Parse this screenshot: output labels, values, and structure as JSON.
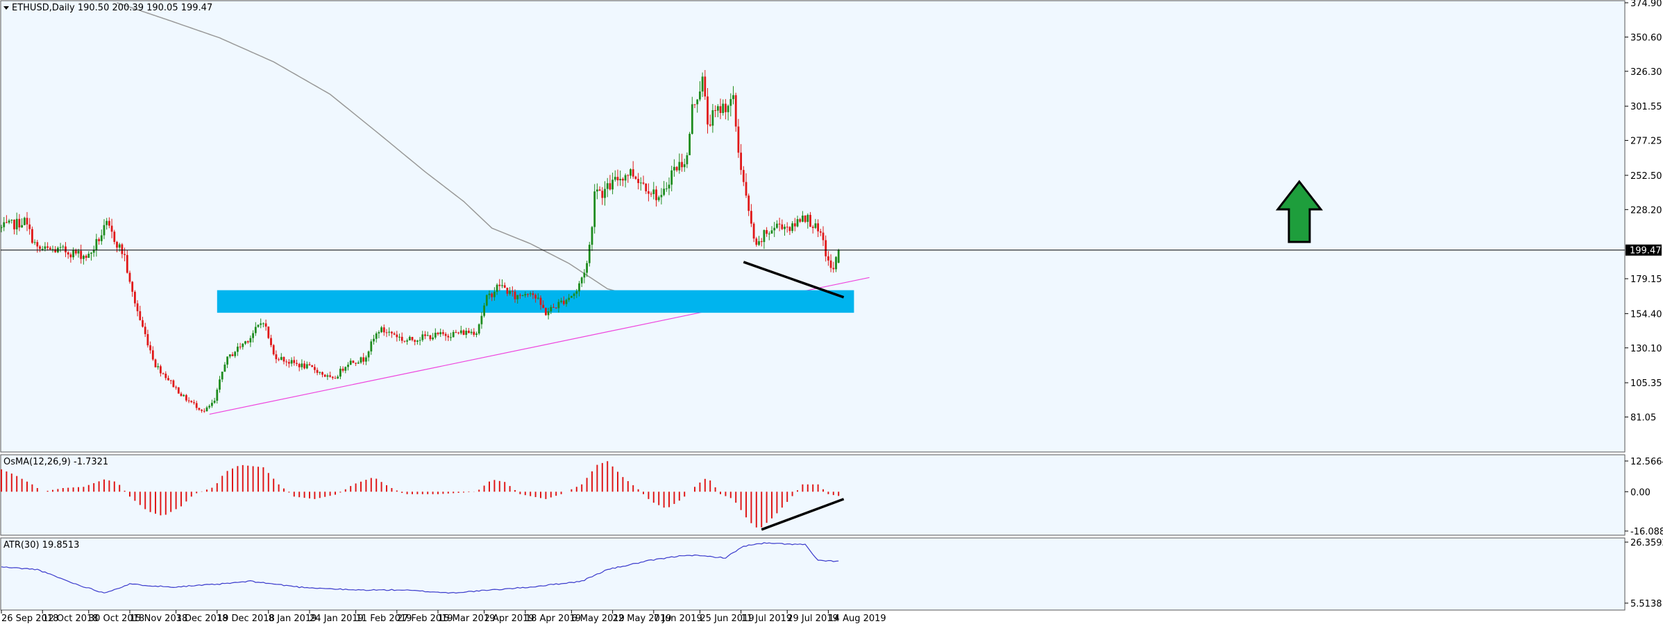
{
  "header": {
    "title": "ETHUSD,Daily  190.50 200.39 190.05 199.47"
  },
  "colors": {
    "background": "#f0f8ff",
    "bull": "#1e8c1e",
    "bear": "#e01818",
    "moving_average": "#999999",
    "trendline": "#ee44dd",
    "support_zone": "#00b4ee",
    "arrow": "#1e9e3c",
    "atr_line": "#3a3acc",
    "divergence_line": "#000000"
  },
  "chart_data": [
    {
      "type": "candlestick",
      "symbol": "ETHUSD",
      "timeframe": "Daily",
      "ohlc_last": {
        "open": 190.5,
        "high": 200.39,
        "low": 190.05,
        "close": 199.47
      },
      "ylim": [
        70.0,
        374.9
      ],
      "y_ticks": [
        "374.90",
        "350.60",
        "326.30",
        "301.55",
        "277.25",
        "252.50",
        "228.20",
        "199.47",
        "179.15",
        "154.40",
        "130.10",
        "105.35",
        "81.05"
      ],
      "current_price_label": "199.47",
      "x_ticks": [
        "26 Sep 2018",
        "12 Oct 2018",
        "30 Oct 2018",
        "15 Nov 2018",
        "3 Dec 2018",
        "19 Dec 2018",
        "8 Jan 2019",
        "24 Jan 2019",
        "11 Feb 2019",
        "27 Feb 2019",
        "15 Mar 2019",
        "2 Apr 2019",
        "18 Apr 2019",
        "6 May 2019",
        "22 May 2019",
        "7 Jun 2019",
        "25 Jun 2019",
        "11 Jul 2019",
        "29 Jul 2019",
        "14 Aug 2019"
      ],
      "x_tick_dates": [
        "2018-09-26",
        "2018-10-12",
        "2018-10-30",
        "2018-11-15",
        "2018-12-03",
        "2018-12-19",
        "2019-01-08",
        "2019-01-24",
        "2019-02-11",
        "2019-02-27",
        "2019-03-15",
        "2019-04-02",
        "2019-04-18",
        "2019-05-06",
        "2019-05-22",
        "2019-06-07",
        "2019-06-25",
        "2019-07-11",
        "2019-07-29",
        "2019-08-14"
      ],
      "close_anchors": [
        [
          "2018-09-26",
          215
        ],
        [
          "2018-10-05",
          220
        ],
        [
          "2018-10-10",
          200
        ],
        [
          "2018-10-20",
          199
        ],
        [
          "2018-10-30",
          195
        ],
        [
          "2018-11-06",
          217
        ],
        [
          "2018-11-13",
          195
        ],
        [
          "2018-11-15",
          175
        ],
        [
          "2018-11-19",
          150
        ],
        [
          "2018-11-25",
          118
        ],
        [
          "2018-11-29",
          110
        ],
        [
          "2018-12-06",
          95
        ],
        [
          "2018-12-14",
          85
        ],
        [
          "2018-12-18",
          92
        ],
        [
          "2018-12-22",
          120
        ],
        [
          "2018-12-26",
          128
        ],
        [
          "2019-01-01",
          138
        ],
        [
          "2019-01-06",
          150
        ],
        [
          "2019-01-10",
          125
        ],
        [
          "2019-01-16",
          120
        ],
        [
          "2019-01-26",
          115
        ],
        [
          "2019-02-02",
          107
        ],
        [
          "2019-02-08",
          120
        ],
        [
          "2019-02-14",
          122
        ],
        [
          "2019-02-20",
          143
        ],
        [
          "2019-02-26",
          140
        ],
        [
          "2019-03-02",
          135
        ],
        [
          "2019-03-10",
          138
        ],
        [
          "2019-03-20",
          140
        ],
        [
          "2019-03-30",
          142
        ],
        [
          "2019-04-03",
          165
        ],
        [
          "2019-04-08",
          175
        ],
        [
          "2019-04-14",
          166
        ],
        [
          "2019-04-20",
          171
        ],
        [
          "2019-04-26",
          155
        ],
        [
          "2019-04-30",
          160
        ],
        [
          "2019-05-08",
          170
        ],
        [
          "2019-05-12",
          190
        ],
        [
          "2019-05-14",
          215
        ],
        [
          "2019-05-15",
          245
        ],
        [
          "2019-05-18",
          240
        ],
        [
          "2019-05-24",
          250
        ],
        [
          "2019-05-29",
          255
        ],
        [
          "2019-06-04",
          245
        ],
        [
          "2019-06-10",
          235
        ],
        [
          "2019-06-14",
          255
        ],
        [
          "2019-06-20",
          265
        ],
        [
          "2019-06-22",
          300
        ],
        [
          "2019-06-26",
          320
        ],
        [
          "2019-06-28",
          290
        ],
        [
          "2019-07-03",
          300
        ],
        [
          "2019-07-08",
          305
        ],
        [
          "2019-07-10",
          270
        ],
        [
          "2019-07-14",
          225
        ],
        [
          "2019-07-17",
          200
        ],
        [
          "2019-07-20",
          210
        ],
        [
          "2019-07-26",
          218
        ],
        [
          "2019-07-31",
          215
        ],
        [
          "2019-08-04",
          225
        ],
        [
          "2019-08-08",
          218
        ],
        [
          "2019-08-12",
          205
        ],
        [
          "2019-08-14",
          190
        ],
        [
          "2019-08-16",
          185
        ],
        [
          "2019-08-18",
          199.47
        ]
      ],
      "ma_anchors": [
        [
          "2018-11-10",
          374.9
        ],
        [
          "2018-12-01",
          362
        ],
        [
          "2018-12-20",
          350
        ],
        [
          "2019-01-10",
          333
        ],
        [
          "2019-02-01",
          310
        ],
        [
          "2019-02-20",
          282
        ],
        [
          "2019-03-10",
          255
        ],
        [
          "2019-03-25",
          234
        ],
        [
          "2019-04-05",
          215
        ],
        [
          "2019-04-20",
          204
        ],
        [
          "2019-05-05",
          190
        ],
        [
          "2019-05-20",
          172
        ],
        [
          "2019-06-05",
          164
        ],
        [
          "2019-06-20",
          163
        ],
        [
          "2019-07-05",
          166
        ],
        [
          "2019-07-20",
          168
        ],
        [
          "2019-08-05",
          169
        ],
        [
          "2019-08-18",
          170
        ]
      ],
      "trendline": [
        [
          "2018-12-16",
          83
        ],
        [
          "2019-08-30",
          180
        ]
      ],
      "support_zone": {
        "from": "2018-12-19",
        "to": "2019-08-24",
        "low": 155,
        "high": 171
      },
      "price_divergence_line": [
        [
          "2019-07-12",
          191
        ],
        [
          "2019-08-20",
          166
        ]
      ],
      "signal_arrow": "up"
    },
    {
      "type": "bar",
      "indicator": "OsMA",
      "label": "OsMA(12,26,9) -1.7321",
      "ylim": [
        -16.0889,
        12.5664
      ],
      "y_ticks": [
        "12.5664",
        "0.00",
        "-16.0889"
      ],
      "anchors": [
        [
          "2018-09-24",
          10
        ],
        [
          "2018-10-01",
          7
        ],
        [
          "2018-10-08",
          3
        ],
        [
          "2018-10-12",
          0
        ],
        [
          "2018-10-20",
          1.5
        ],
        [
          "2018-10-28",
          2
        ],
        [
          "2018-11-05",
          5
        ],
        [
          "2018-11-10",
          4
        ],
        [
          "2018-11-15",
          -2
        ],
        [
          "2018-11-22",
          -8
        ],
        [
          "2018-11-28",
          -10
        ],
        [
          "2018-12-05",
          -6
        ],
        [
          "2018-12-10",
          -1
        ],
        [
          "2018-12-18",
          2
        ],
        [
          "2018-12-22",
          8
        ],
        [
          "2018-12-28",
          11
        ],
        [
          "2019-01-06",
          10
        ],
        [
          "2019-01-12",
          3
        ],
        [
          "2019-01-18",
          -2
        ],
        [
          "2019-01-26",
          -3
        ],
        [
          "2019-02-04",
          -1
        ],
        [
          "2019-02-10",
          3
        ],
        [
          "2019-02-18",
          6
        ],
        [
          "2019-02-24",
          2
        ],
        [
          "2019-03-02",
          -1
        ],
        [
          "2019-03-15",
          -1
        ],
        [
          "2019-03-30",
          0
        ],
        [
          "2019-04-05",
          5
        ],
        [
          "2019-04-10",
          4
        ],
        [
          "2019-04-16",
          -1
        ],
        [
          "2019-04-26",
          -3
        ],
        [
          "2019-05-02",
          -1
        ],
        [
          "2019-05-10",
          3
        ],
        [
          "2019-05-16",
          11
        ],
        [
          "2019-05-20",
          12.5
        ],
        [
          "2019-05-26",
          6
        ],
        [
          "2019-06-01",
          1
        ],
        [
          "2019-06-06",
          -4
        ],
        [
          "2019-06-12",
          -7
        ],
        [
          "2019-06-18",
          -3
        ],
        [
          "2019-06-24",
          3
        ],
        [
          "2019-06-28",
          6
        ],
        [
          "2019-07-03",
          -1
        ],
        [
          "2019-07-08",
          -3
        ],
        [
          "2019-07-14",
          -12
        ],
        [
          "2019-07-18",
          -15.5
        ],
        [
          "2019-07-24",
          -10
        ],
        [
          "2019-07-30",
          -3
        ],
        [
          "2019-08-04",
          3
        ],
        [
          "2019-08-10",
          3
        ],
        [
          "2019-08-14",
          -1
        ],
        [
          "2019-08-18",
          -1.7321
        ]
      ],
      "divergence_line": [
        [
          "2019-07-19",
          -15.5
        ],
        [
          "2019-08-20",
          -3
        ]
      ]
    },
    {
      "type": "line",
      "indicator": "ATR",
      "label": "ATR(30) 19.8513",
      "ylim": [
        5.5138,
        26.3592
      ],
      "y_ticks": [
        "26.3592",
        "5.5138"
      ],
      "anchors": [
        [
          "2018-09-24",
          18
        ],
        [
          "2018-10-10",
          17
        ],
        [
          "2018-10-25",
          12
        ],
        [
          "2018-11-05",
          9
        ],
        [
          "2018-11-15",
          12
        ],
        [
          "2018-12-01",
          11
        ],
        [
          "2018-12-20",
          12
        ],
        [
          "2019-01-01",
          13
        ],
        [
          "2019-01-20",
          11
        ],
        [
          "2019-02-10",
          10
        ],
        [
          "2019-03-01",
          10
        ],
        [
          "2019-03-20",
          9
        ],
        [
          "2019-04-05",
          10
        ],
        [
          "2019-04-20",
          11
        ],
        [
          "2019-05-10",
          13
        ],
        [
          "2019-05-20",
          17
        ],
        [
          "2019-06-05",
          20
        ],
        [
          "2019-06-20",
          22
        ],
        [
          "2019-07-05",
          21
        ],
        [
          "2019-07-12",
          25
        ],
        [
          "2019-07-20",
          26
        ],
        [
          "2019-08-05",
          25.5
        ],
        [
          "2019-08-10",
          20
        ],
        [
          "2019-08-18",
          19.8513
        ]
      ]
    }
  ]
}
